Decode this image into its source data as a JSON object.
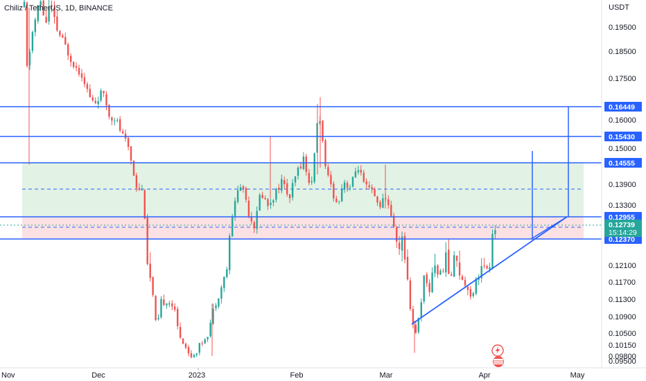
{
  "header": {
    "symbol_line": "Chiliz / TetherUS, 1D, BINANCE",
    "currency": "USDT"
  },
  "chart_data": {
    "type": "candlestick",
    "y_ticks": [
      "0.19500",
      "0.18500",
      "0.17500",
      "0.16000",
      "0.15000",
      "0.13900",
      "0.13300",
      "0.12100",
      "0.11700",
      "0.11300",
      "0.10900",
      "0.10500",
      "0.10150",
      "0.09800",
      "0.09500"
    ],
    "x_ticks": [
      "Nov",
      "Dec",
      "2023",
      "Feb",
      "Mar",
      "Apr",
      "May"
    ],
    "level_tags": [
      {
        "label": "0.16449",
        "color": "#2962ff"
      },
      {
        "label": "0.15430",
        "color": "#2962ff"
      },
      {
        "label": "0.14555",
        "color": "#2962ff"
      },
      {
        "label": "0.12955",
        "color": "#2962ff"
      },
      {
        "label": "0.12370",
        "color": "#2962ff"
      }
    ],
    "last_price": {
      "label": "0.12739",
      "countdown": "15:14:29",
      "color": "#26a69a"
    },
    "colors": {
      "up": "#26a69a",
      "down": "#ef5350",
      "lines": "#2962ff",
      "reward_zone": "#e2f2e4",
      "risk_zone": "#fbe1e3"
    }
  }
}
